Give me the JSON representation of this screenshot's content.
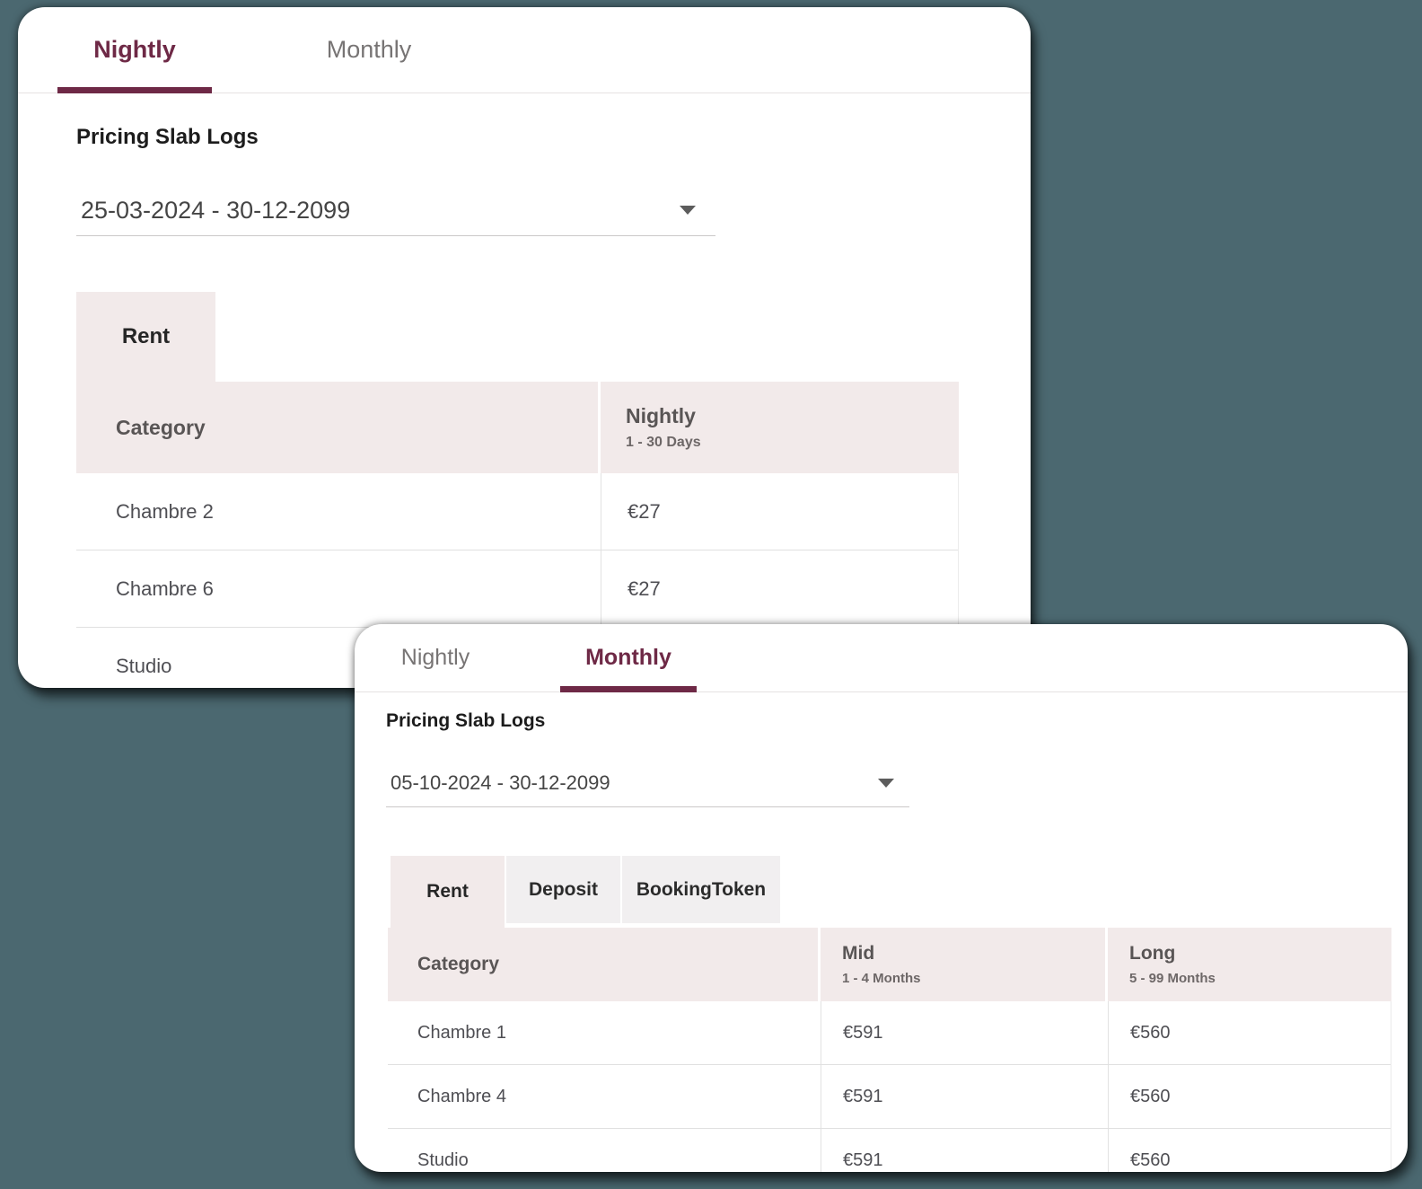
{
  "colors": {
    "background": "#4b6870",
    "accent_maroon": "#6e2946",
    "table_header_bg": "#f2eaea",
    "inactive_chip_bg": "#f1eff0"
  },
  "cards": [
    {
      "id": "nightly-card",
      "tabs": [
        {
          "label": "Nightly",
          "active": true
        },
        {
          "label": "Monthly",
          "active": false
        }
      ],
      "section_title": "Pricing Slab Logs",
      "date_range": {
        "value": "25-03-2024 - 30-12-2099",
        "icon": "dropdown-arrow-icon"
      },
      "price_type_tabs": [
        {
          "label": "Rent",
          "active": true
        }
      ],
      "table": {
        "columns": [
          {
            "label": "Category",
            "sublabel": ""
          },
          {
            "label": "Nightly",
            "sublabel": "1 - 30 Days"
          }
        ],
        "rows": [
          {
            "category": "Chambre 2",
            "values": [
              "€27"
            ]
          },
          {
            "category": "Chambre 6",
            "values": [
              "€27"
            ]
          },
          {
            "category": "Studio",
            "values": [
              ""
            ]
          }
        ]
      }
    },
    {
      "id": "monthly-card",
      "tabs": [
        {
          "label": "Nightly",
          "active": false
        },
        {
          "label": "Monthly",
          "active": true
        }
      ],
      "section_title": "Pricing Slab Logs",
      "date_range": {
        "value": "05-10-2024 - 30-12-2099",
        "icon": "dropdown-arrow-icon"
      },
      "price_type_tabs": [
        {
          "label": "Rent",
          "active": true
        },
        {
          "label": "Deposit",
          "active": false
        },
        {
          "label": "BookingToken",
          "active": false
        }
      ],
      "table": {
        "columns": [
          {
            "label": "Category",
            "sublabel": ""
          },
          {
            "label": "Mid",
            "sublabel": "1 - 4 Months"
          },
          {
            "label": "Long",
            "sublabel": "5 - 99 Months"
          }
        ],
        "rows": [
          {
            "category": "Chambre 1",
            "values": [
              "€591",
              "€560"
            ]
          },
          {
            "category": "Chambre 4",
            "values": [
              "€591",
              "€560"
            ]
          },
          {
            "category": "Studio",
            "values": [
              "€591",
              "€560"
            ]
          }
        ]
      }
    }
  ]
}
